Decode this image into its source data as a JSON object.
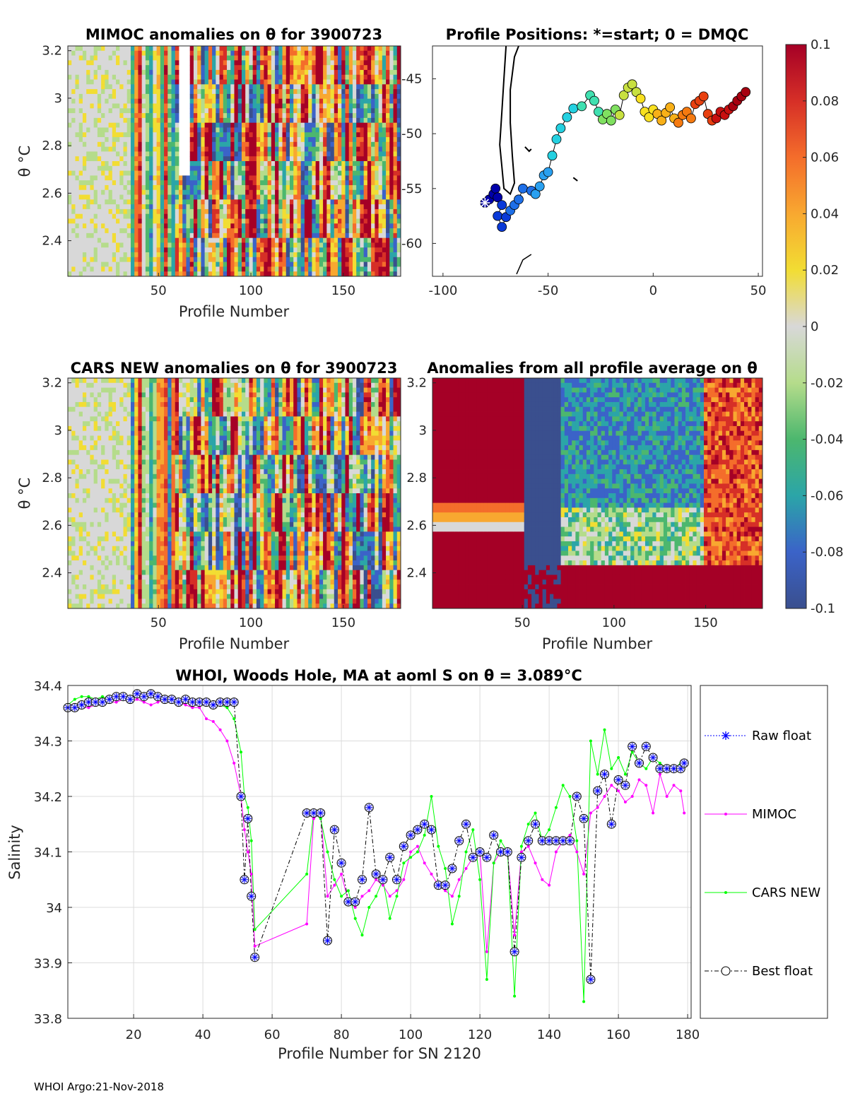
{
  "footer": "WHOI Argo:21-Nov-2018",
  "colors": {
    "raw_float": "#0000ff",
    "mimoc": "#ff00ff",
    "cars_new": "#00ff00",
    "best_float": "#000000"
  },
  "chart_data": [
    {
      "id": "mimoc",
      "type": "heatmap",
      "title": "MIMOC anomalies on θ  for 3900723",
      "xlabel": "Profile Number",
      "ylabel": "θ °C",
      "xlim": [
        1,
        181
      ],
      "ylim": [
        2.25,
        3.22
      ],
      "xticks": [
        "50",
        "100",
        "150"
      ],
      "yticks": [
        "2.4",
        "2.6",
        "2.8",
        "3",
        "3.2"
      ],
      "color_scheme": "anomaly"
    },
    {
      "id": "positions",
      "type": "scatter",
      "title": "Profile Positions: *=start; 0 = DMQC",
      "xlabel": "",
      "ylabel": "",
      "xlim": [
        -105,
        52
      ],
      "ylim": [
        -63,
        -42
      ],
      "xticks": [
        "-100",
        "-50",
        "0",
        "50"
      ],
      "yticks": [
        "-45",
        "-50",
        "-55",
        "-60"
      ],
      "track_points": [
        [
          -80,
          -56.3
        ],
        [
          -78,
          -56
        ],
        [
          -76,
          -55.5
        ],
        [
          -75,
          -55
        ],
        [
          -74,
          -55.8
        ],
        [
          -72,
          -56.5
        ],
        [
          -74,
          -57.5
        ],
        [
          -72,
          -58.5
        ],
        [
          -70,
          -57.6
        ],
        [
          -68,
          -57
        ],
        [
          -66,
          -56.5
        ],
        [
          -64,
          -56
        ],
        [
          -62,
          -55
        ],
        [
          -58,
          -55.2
        ],
        [
          -56,
          -55.5
        ],
        [
          -54,
          -54.8
        ],
        [
          -52,
          -53.8
        ],
        [
          -50,
          -53.5
        ],
        [
          -48,
          -52
        ],
        [
          -46,
          -50.5
        ],
        [
          -44,
          -49.5
        ],
        [
          -41,
          -48.5
        ],
        [
          -38,
          -47.7
        ],
        [
          -34,
          -47.5
        ],
        [
          -30,
          -46.5
        ],
        [
          -28,
          -47
        ],
        [
          -26,
          -48
        ],
        [
          -24,
          -48.7
        ],
        [
          -22,
          -48.2
        ],
        [
          -20,
          -48.8
        ],
        [
          -18,
          -47.8
        ],
        [
          -16,
          -48.3
        ],
        [
          -14,
          -46.5
        ],
        [
          -12,
          -45.8
        ],
        [
          -10,
          -45.5
        ],
        [
          -8,
          -46.2
        ],
        [
          -6,
          -46.8
        ],
        [
          -4,
          -48
        ],
        [
          -2,
          -48.5
        ],
        [
          0,
          -47.8
        ],
        [
          2,
          -48.2
        ],
        [
          4,
          -48.8
        ],
        [
          6,
          -48.1
        ],
        [
          8,
          -47.6
        ],
        [
          10,
          -48.6
        ],
        [
          12,
          -49
        ],
        [
          14,
          -48.3
        ],
        [
          16,
          -48
        ],
        [
          18,
          -48.6
        ],
        [
          20,
          -47.3
        ],
        [
          22,
          -47
        ],
        [
          24,
          -46.6
        ],
        [
          26,
          -48.2
        ],
        [
          28,
          -48.8
        ],
        [
          30,
          -48.6
        ],
        [
          32,
          -48
        ],
        [
          34,
          -48.3
        ],
        [
          36,
          -47.8
        ],
        [
          38,
          -47.5
        ],
        [
          40,
          -47
        ],
        [
          42,
          -46.6
        ],
        [
          44,
          -46.2
        ]
      ],
      "start_marker": [
        -80,
        -56.3
      ]
    },
    {
      "id": "cars",
      "type": "heatmap",
      "title": "CARS NEW anomalies on θ for 3900723",
      "xlabel": "Profile Number",
      "ylabel": "θ °C",
      "xlim": [
        1,
        181
      ],
      "ylim": [
        2.25,
        3.22
      ],
      "xticks": [
        "50",
        "100",
        "150"
      ],
      "yticks": [
        "2.4",
        "2.6",
        "2.8",
        "3",
        "3.2"
      ],
      "color_scheme": "anomaly"
    },
    {
      "id": "allavg",
      "type": "heatmap",
      "title": "Anomalies from all profile average on θ",
      "xlabel": "Profile Number",
      "ylabel": "",
      "xlim": [
        1,
        181
      ],
      "ylim": [
        2.25,
        3.22
      ],
      "xticks": [
        "50",
        "100",
        "150"
      ],
      "yticks": [
        "2.4",
        "2.6",
        "2.8",
        "3",
        "3.2"
      ],
      "color_scheme": "blocks"
    },
    {
      "id": "colorbar",
      "type": "heatmap",
      "title": "",
      "range": [
        -0.1,
        0.1
      ],
      "tick_labels": [
        "0.1",
        "0.08",
        "0.06",
        "0.04",
        "0.02",
        "0",
        "-0.02",
        "-0.04",
        "-0.06",
        "-0.08",
        "-0.1"
      ]
    },
    {
      "id": "salinity",
      "type": "line",
      "title": "WHOI, Woods Hole, MA at aoml S on θ = 3.089°C",
      "xlabel": "Profile Number for SN 2120",
      "ylabel": "Salinity",
      "xlim": [
        1,
        181
      ],
      "ylim": [
        33.8,
        34.4
      ],
      "xticks": [
        "20",
        "40",
        "60",
        "80",
        "100",
        "120",
        "140",
        "160",
        "180"
      ],
      "yticks": [
        "33.8",
        "33.9",
        "34",
        "34.1",
        "34.2",
        "34.3",
        "34.4"
      ],
      "grid": true,
      "legend_position": "right-outside",
      "legend": [
        "Raw float",
        "MIMOC",
        "CARS NEW",
        "Best float"
      ],
      "series": [
        {
          "name": "MIMOC",
          "x": [
            1,
            3,
            5,
            7,
            9,
            11,
            13,
            15,
            17,
            19,
            21,
            23,
            25,
            27,
            29,
            31,
            33,
            35,
            37,
            39,
            41,
            43,
            45,
            47,
            49,
            51,
            52,
            53,
            54,
            55,
            70,
            72,
            74,
            76,
            78,
            80,
            82,
            84,
            86,
            88,
            90,
            92,
            94,
            96,
            98,
            100,
            102,
            104,
            106,
            108,
            110,
            112,
            114,
            116,
            118,
            120,
            122,
            124,
            126,
            128,
            130,
            132,
            134,
            136,
            138,
            140,
            142,
            144,
            146,
            148,
            150,
            152,
            154,
            156,
            158,
            160,
            162,
            164,
            166,
            168,
            170,
            172,
            174,
            176,
            178,
            179
          ],
          "values": [
            34.36,
            34.36,
            34.36,
            34.36,
            34.365,
            34.37,
            34.37,
            34.37,
            34.375,
            34.37,
            34.375,
            34.37,
            34.365,
            34.37,
            34.375,
            34.37,
            34.37,
            34.365,
            34.36,
            34.36,
            34.34,
            34.335,
            34.32,
            34.3,
            34.26,
            34.2,
            34.14,
            34.1,
            34.06,
            33.93,
            33.97,
            34.16,
            34.17,
            34.02,
            34.04,
            34.06,
            34.01,
            34,
            34.02,
            34.03,
            34.05,
            34.04,
            34.02,
            34.03,
            34.05,
            34.1,
            34.11,
            34.08,
            34.06,
            34.04,
            34.03,
            34.02,
            34.05,
            34.07,
            34.09,
            34.1,
            33.92,
            34.08,
            34.1,
            34.1,
            33.95,
            34.1,
            34.11,
            34.08,
            34.05,
            34.04,
            34.1,
            34.12,
            34.13,
            34.1,
            34.06,
            34.17,
            34.18,
            34.2,
            34.22,
            34.21,
            34.19,
            34.2,
            34.23,
            34.22,
            34.17,
            34.24,
            34.2,
            34.22,
            34.21,
            34.17
          ]
        },
        {
          "name": "CARS NEW",
          "x": [
            1,
            3,
            5,
            7,
            9,
            11,
            13,
            15,
            17,
            19,
            21,
            23,
            25,
            27,
            29,
            31,
            33,
            35,
            37,
            39,
            41,
            43,
            45,
            47,
            49,
            51,
            52,
            53,
            54,
            55,
            70,
            72,
            74,
            76,
            78,
            80,
            82,
            84,
            86,
            88,
            90,
            92,
            94,
            96,
            98,
            100,
            102,
            104,
            106,
            108,
            110,
            112,
            114,
            116,
            118,
            120,
            122,
            124,
            126,
            128,
            130,
            132,
            134,
            136,
            138,
            140,
            142,
            144,
            146,
            148,
            150,
            152,
            154,
            156,
            158,
            160,
            162,
            164,
            166,
            168,
            170,
            172,
            174,
            176,
            178,
            179
          ],
          "values": [
            34.365,
            34.375,
            34.38,
            34.38,
            34.375,
            34.38,
            34.375,
            34.38,
            34.38,
            34.375,
            34.38,
            34.38,
            34.385,
            34.38,
            34.375,
            34.38,
            34.375,
            34.37,
            34.37,
            34.365,
            34.37,
            34.37,
            34.365,
            34.36,
            34.34,
            34.28,
            34.2,
            34.18,
            34.12,
            33.96,
            34.06,
            34.17,
            34.16,
            34.1,
            34.05,
            34.02,
            34.03,
            33.98,
            33.95,
            34,
            34.02,
            34.05,
            33.98,
            34.02,
            34.08,
            34.09,
            34.1,
            34.13,
            34.2,
            34.11,
            34.07,
            33.97,
            34.02,
            34.1,
            34.14,
            34.05,
            33.87,
            34.08,
            34.12,
            34.1,
            33.84,
            34.11,
            34.15,
            34.17,
            34.12,
            34.14,
            34.18,
            34.22,
            34.2,
            34.12,
            33.83,
            34.3,
            34.24,
            34.32,
            34.25,
            34.27,
            34.24,
            34.28,
            34.26,
            34.25,
            34.27,
            34.26,
            34.25,
            34.25,
            34.26,
            34.26
          ]
        },
        {
          "name": "Best float",
          "x": [
            1,
            3,
            5,
            7,
            9,
            11,
            13,
            15,
            17,
            19,
            21,
            23,
            25,
            27,
            29,
            31,
            33,
            35,
            37,
            39,
            41,
            43,
            45,
            47,
            49,
            51,
            52,
            53,
            54,
            55,
            70,
            72,
            74,
            76,
            78,
            80,
            82,
            84,
            86,
            88,
            90,
            92,
            94,
            96,
            98,
            100,
            102,
            104,
            106,
            108,
            110,
            112,
            114,
            116,
            118,
            120,
            122,
            124,
            126,
            128,
            130,
            132,
            134,
            136,
            138,
            140,
            142,
            144,
            146,
            148,
            150,
            152,
            154,
            156,
            158,
            160,
            162,
            164,
            166,
            168,
            170,
            172,
            174,
            176,
            178,
            179
          ],
          "values": [
            34.36,
            34.36,
            34.365,
            34.37,
            34.37,
            34.37,
            34.375,
            34.38,
            34.38,
            34.375,
            34.385,
            34.38,
            34.385,
            34.38,
            34.375,
            34.375,
            34.37,
            34.375,
            34.37,
            34.37,
            34.37,
            34.365,
            34.37,
            34.37,
            34.37,
            34.2,
            34.05,
            34.16,
            34.02,
            33.91,
            34.17,
            34.17,
            34.17,
            33.94,
            34.14,
            34.08,
            34.01,
            34.01,
            34.05,
            34.18,
            34.06,
            34.05,
            34.09,
            34.05,
            34.11,
            34.13,
            34.14,
            34.15,
            34.14,
            34.04,
            34.04,
            34.07,
            34.12,
            34.15,
            34.09,
            34.1,
            34.09,
            34.13,
            34.1,
            34.1,
            33.92,
            34.09,
            34.12,
            34.15,
            34.12,
            34.12,
            34.12,
            34.12,
            34.12,
            34.2,
            34.16,
            33.87,
            34.21,
            34.24,
            34.15,
            34.23,
            34.22,
            34.29,
            34.26,
            34.29,
            34.27,
            34.25,
            34.25,
            34.25,
            34.25,
            34.26
          ]
        }
      ]
    }
  ]
}
